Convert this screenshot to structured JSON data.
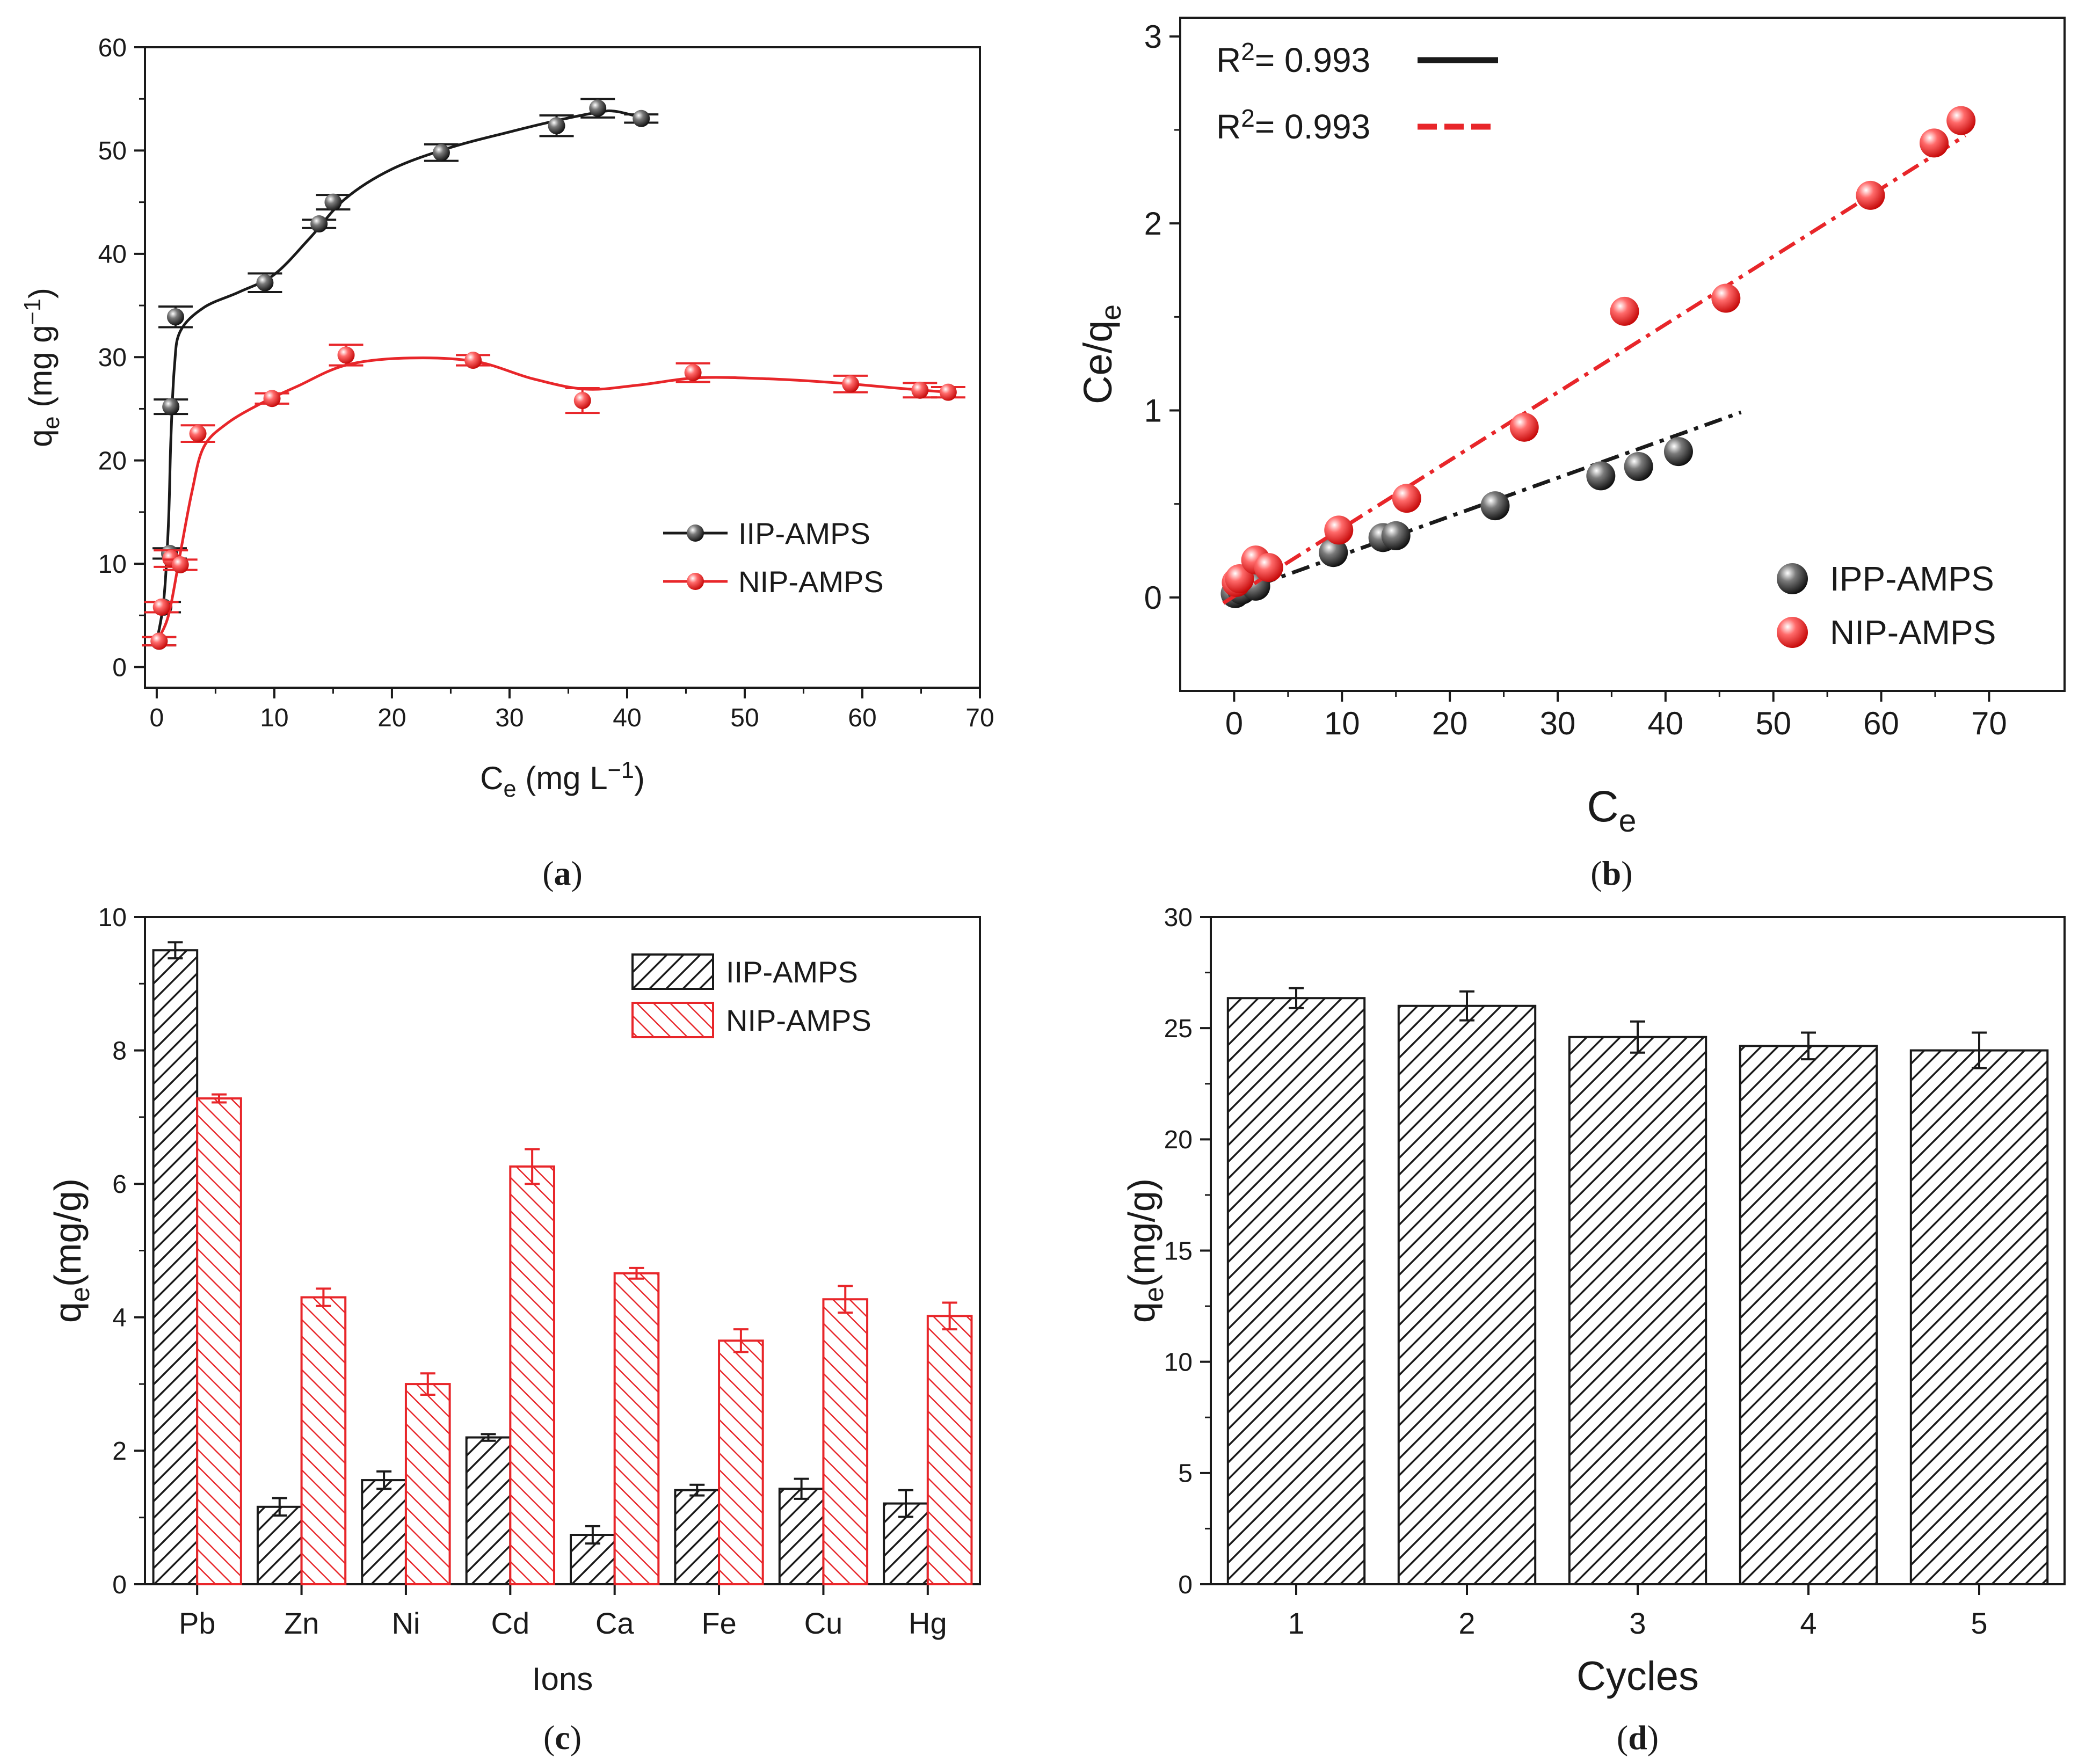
{
  "colors": {
    "black_series": "#1a1a1a",
    "red_series": "#e8262a",
    "axis": "#1a1a1a"
  },
  "chart_data": [
    {
      "id": "a",
      "panel_label": [
        "(",
        "a",
        ")"
      ],
      "type": "scatter",
      "xlabel": [
        "C",
        "e",
        " (mg L",
        "−1",
        ")"
      ],
      "ylabel": [
        "q",
        "e",
        " (mg g",
        "−1",
        ")"
      ],
      "xlim": [
        -1,
        70
      ],
      "ylim": [
        -2,
        60
      ],
      "xticks": [
        0,
        10,
        20,
        30,
        40,
        50,
        60,
        70
      ],
      "yticks": [
        0,
        10,
        20,
        30,
        40,
        50,
        60
      ],
      "legend": {
        "position": "bottom-right",
        "entries": [
          "IIP-AMPS",
          "NIP-AMPS"
        ]
      },
      "series": [
        {
          "name": "IIP-AMPS",
          "color": "#1a1a1a",
          "points": [
            [
              0.2,
              2.5,
              0.4
            ],
            [
              0.6,
              5.8,
              0.5
            ],
            [
              1.1,
              11.0,
              0.5
            ],
            [
              1.2,
              25.2,
              0.7
            ],
            [
              1.6,
              33.9,
              1.0
            ],
            [
              9.2,
              37.2,
              0.9
            ],
            [
              13.8,
              42.9,
              0.4
            ],
            [
              15.0,
              45.0,
              0.7
            ],
            [
              24.2,
              49.8,
              0.8
            ],
            [
              34.0,
              52.4,
              1.0
            ],
            [
              37.5,
              54.1,
              0.9
            ],
            [
              41.2,
              53.1,
              0.4
            ]
          ],
          "fit": [
            [
              0,
              2.5
            ],
            [
              0.6,
              6.5
            ],
            [
              1.0,
              14
            ],
            [
              1.2,
              22
            ],
            [
              1.5,
              29
            ],
            [
              2,
              32.5
            ],
            [
              4,
              34.8
            ],
            [
              7,
              36.3
            ],
            [
              10,
              38
            ],
            [
              13,
              41.5
            ],
            [
              16,
              45.3
            ],
            [
              20,
              48.2
            ],
            [
              25,
              50.3
            ],
            [
              30,
              51.8
            ],
            [
              34,
              52.9
            ],
            [
              37.5,
              53.7
            ],
            [
              39,
              53.8
            ],
            [
              41.2,
              53.2
            ]
          ]
        },
        {
          "name": "NIP-AMPS",
          "color": "#e8262a",
          "points": [
            [
              0.2,
              2.5,
              0.4
            ],
            [
              0.4,
              5.8,
              0.5
            ],
            [
              1.2,
              10.5,
              0.8
            ],
            [
              2.0,
              9.9,
              0.5
            ],
            [
              3.5,
              22.6,
              0.8
            ],
            [
              9.8,
              26.0,
              0.5
            ],
            [
              16.1,
              30.2,
              1.0
            ],
            [
              26.9,
              29.7,
              0.5
            ],
            [
              36.2,
              25.8,
              1.2
            ],
            [
              45.6,
              28.5,
              0.9
            ],
            [
              59.0,
              27.4,
              0.8
            ],
            [
              64.9,
              26.8,
              0.7
            ],
            [
              67.3,
              26.6,
              0.5
            ]
          ],
          "fit": [
            [
              0,
              2.5
            ],
            [
              1.0,
              5
            ],
            [
              2.0,
              11
            ],
            [
              3,
              17
            ],
            [
              4,
              21.3
            ],
            [
              6,
              23.6
            ],
            [
              9,
              25.6
            ],
            [
              12,
              27.2
            ],
            [
              16,
              29.2
            ],
            [
              21,
              29.9
            ],
            [
              27,
              29.6
            ],
            [
              32,
              27.9
            ],
            [
              36.5,
              26.9
            ],
            [
              41,
              27.3
            ],
            [
              46,
              28.0
            ],
            [
              52,
              27.9
            ],
            [
              58,
              27.5
            ],
            [
              63,
              27.0
            ],
            [
              67.3,
              26.6
            ]
          ]
        }
      ]
    },
    {
      "id": "b",
      "panel_label": [
        "(",
        "b",
        ")"
      ],
      "type": "scatter",
      "xlabel": [
        "C",
        "e"
      ],
      "ylabel": [
        "Ce/q",
        "e"
      ],
      "xlim": [
        -5,
        77
      ],
      "ylim": [
        -0.5,
        3.1
      ],
      "xticks": [
        0,
        10,
        20,
        30,
        40,
        50,
        60,
        70
      ],
      "yticks": [
        0,
        1,
        2,
        3
      ],
      "fit_legend": [
        {
          "text": [
            "R",
            "2",
            "= 0.993"
          ],
          "color": "#1a1a1a",
          "style": "solid"
        },
        {
          "text": [
            "R",
            "2",
            "= 0.993"
          ],
          "color": "#e8262a",
          "style": "dash"
        }
      ],
      "legend": {
        "position": "bottom-right",
        "entries": [
          "IPP-AMPS",
          "NIP-AMPS"
        ]
      },
      "series": [
        {
          "name": "IPP-AMPS",
          "color": "#1a1a1a",
          "points": [
            [
              0.1,
              0.02
            ],
            [
              0.7,
              0.04
            ],
            [
              2.0,
              0.06
            ],
            [
              9.2,
              0.24
            ],
            [
              13.8,
              0.32
            ],
            [
              15.0,
              0.33
            ],
            [
              24.2,
              0.49
            ],
            [
              34.0,
              0.65
            ],
            [
              37.5,
              0.7
            ],
            [
              41.2,
              0.78
            ]
          ],
          "fit_line": [
            [
              -1,
              0.0
            ],
            [
              47,
              0.99
            ]
          ]
        },
        {
          "name": "NIP-AMPS",
          "color": "#e8262a",
          "points": [
            [
              0.2,
              0.08
            ],
            [
              0.5,
              0.1
            ],
            [
              2.0,
              0.2
            ],
            [
              3.2,
              0.16
            ],
            [
              9.7,
              0.36
            ],
            [
              16.0,
              0.53
            ],
            [
              26.9,
              0.91
            ],
            [
              36.2,
              1.53
            ],
            [
              45.6,
              1.6
            ],
            [
              59.0,
              2.15
            ],
            [
              64.9,
              2.43
            ],
            [
              67.4,
              2.55
            ]
          ],
          "fit_line": [
            [
              -1,
              -0.03
            ],
            [
              67.8,
              2.47
            ]
          ]
        }
      ]
    },
    {
      "id": "c",
      "panel_label": [
        "(",
        "c",
        ")"
      ],
      "type": "bar",
      "xlabel": [
        "Ions"
      ],
      "ylabel": [
        "q",
        "e",
        "(mg/g)"
      ],
      "categories": [
        "Pb",
        "Zn",
        "Ni",
        "Cd",
        "Ca",
        "Fe",
        "Cu",
        "Hg"
      ],
      "ylim": [
        0,
        10
      ],
      "yticks": [
        0,
        2,
        4,
        6,
        8,
        10
      ],
      "legend": {
        "position": "top-right",
        "entries": [
          "IIP-AMPS",
          "NIP-AMPS"
        ]
      },
      "series": [
        {
          "name": "IIP-AMPS",
          "color": "#1a1a1a",
          "values": [
            9.5,
            1.16,
            1.56,
            2.2,
            0.74,
            1.41,
            1.43,
            1.21
          ],
          "errors": [
            0.12,
            0.13,
            0.13,
            0.05,
            0.13,
            0.08,
            0.15,
            0.2
          ]
        },
        {
          "name": "NIP-AMPS",
          "color": "#e8262a",
          "values": [
            7.28,
            4.3,
            3.0,
            6.26,
            4.66,
            3.65,
            4.27,
            4.02
          ],
          "errors": [
            0.06,
            0.13,
            0.16,
            0.26,
            0.08,
            0.17,
            0.2,
            0.2
          ]
        }
      ]
    },
    {
      "id": "d",
      "panel_label": [
        "(",
        "d",
        ")"
      ],
      "type": "bar",
      "xlabel": [
        "Cycles"
      ],
      "ylabel": [
        "q",
        "e",
        "(mg/g)"
      ],
      "categories": [
        "1",
        "2",
        "3",
        "4",
        "5"
      ],
      "ylim": [
        0,
        30
      ],
      "yticks": [
        0,
        5,
        10,
        15,
        20,
        25,
        30
      ],
      "series": [
        {
          "name": "qe",
          "color": "#1a1a1a",
          "values": [
            26.35,
            26.0,
            24.6,
            24.2,
            24.0
          ],
          "errors": [
            0.45,
            0.65,
            0.7,
            0.6,
            0.8
          ]
        }
      ]
    }
  ]
}
